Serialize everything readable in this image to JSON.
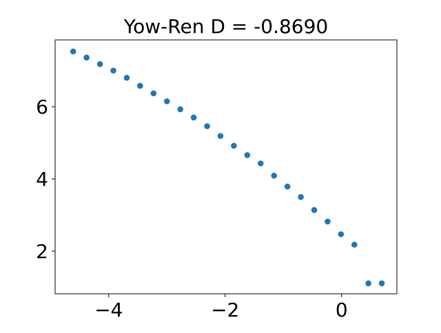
{
  "chart_data": {
    "type": "scatter",
    "title": "Yow-Ren D = -0.8690",
    "xlabel": "",
    "ylabel": "",
    "xlim": [
      -4.92,
      0.95
    ],
    "ylim": [
      0.82,
      7.85
    ],
    "xticks": [
      -4,
      -2,
      0
    ],
    "xtick_labels": [
      "−4",
      "−2",
      "0"
    ],
    "yticks": [
      2,
      4,
      6
    ],
    "ytick_labels": [
      "2",
      "4",
      "6"
    ],
    "grid": false,
    "marker_color": "#1f77b4",
    "x": [
      -4.61,
      -4.38,
      -4.15,
      -3.92,
      -3.69,
      -3.46,
      -3.23,
      -3.0,
      -2.77,
      -2.54,
      -2.31,
      -2.08,
      -1.85,
      -1.62,
      -1.39,
      -1.16,
      -0.93,
      -0.7,
      -0.47,
      -0.24,
      -0.01,
      0.22,
      0.46,
      0.69
    ],
    "y": [
      7.53,
      7.36,
      7.18,
      7.0,
      6.8,
      6.58,
      6.37,
      6.15,
      5.93,
      5.7,
      5.46,
      5.19,
      4.92,
      4.66,
      4.43,
      4.09,
      3.79,
      3.5,
      3.14,
      2.82,
      2.47,
      2.18,
      1.11,
      1.11
    ]
  }
}
